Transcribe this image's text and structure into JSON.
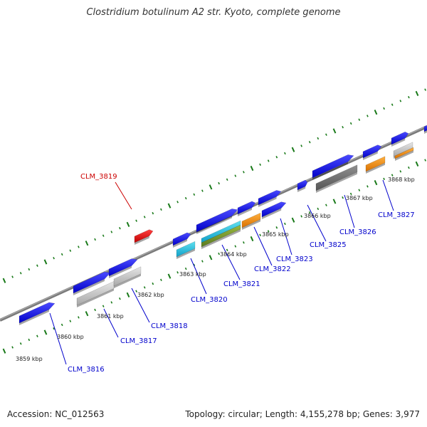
{
  "title": "Clostridium botulinum A2 str. Kyoto, complete genome",
  "footer": {
    "accession": "Accession: NC_012563",
    "summary": "Topology: circular; Length: 4,155,278 bp; Genes: 3,977"
  },
  "scale_labels": [
    "3859 kbp",
    "3860 kbp",
    "3861 kbp",
    "3862 kbp",
    "3863 kbp",
    "3864 kbp",
    "3865 kbp",
    "3866 kbp",
    "3867 kbp",
    "3868 kbp"
  ],
  "genes": [
    {
      "id": "CLM_3816",
      "color": "#0000ee"
    },
    {
      "id": "CLM_3817",
      "color": "#0000ee"
    },
    {
      "id": "CLM_3818",
      "color": "#0000ee"
    },
    {
      "id": "CLM_3819",
      "color": "#dd0000"
    },
    {
      "id": "CLM_3820",
      "color": "#0000ee"
    },
    {
      "id": "CLM_3821",
      "color": "#0000ee"
    },
    {
      "id": "CLM_3822",
      "color": "#0000ee"
    },
    {
      "id": "CLM_3823",
      "color": "#0000ee"
    },
    {
      "id": "CLM_3825",
      "color": "#0000ee"
    },
    {
      "id": "CLM_3826",
      "color": "#0000ee"
    },
    {
      "id": "CLM_3827",
      "color": "#0000ee"
    }
  ],
  "colors": {
    "backbone": "#808080",
    "ticks": "#1a7a1a",
    "cds": "#1010e8",
    "highlight": "#dd1010",
    "rrna_grey": "#c0c0c0",
    "dark_grey": "#707070",
    "cyan": "#30c8e0",
    "orange": "#f59010",
    "olive": "#7a9a30"
  }
}
